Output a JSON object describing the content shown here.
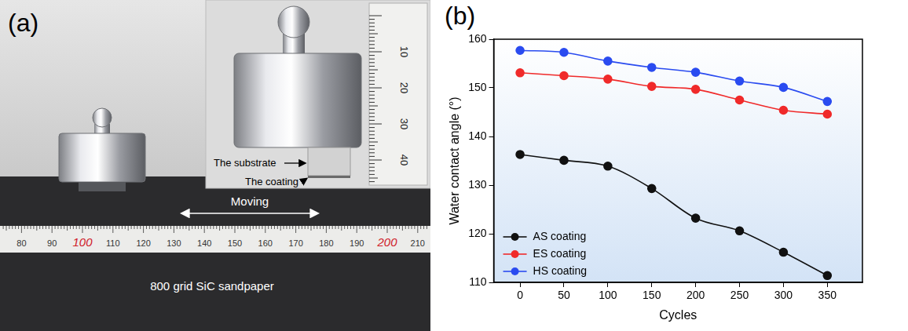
{
  "panel_a": {
    "label": "(a)",
    "annotations": {
      "substrate": "The substrate",
      "coating": "The coating",
      "moving": "Moving",
      "sandpaper": "800 grid SiC sandpaper"
    },
    "ruler_labels": [
      80,
      90,
      100,
      110,
      120,
      130,
      140,
      150,
      160,
      170,
      180,
      190,
      200,
      210
    ],
    "inset_ruler_labels": [
      10,
      20,
      30,
      40
    ]
  },
  "chart_data": {
    "type": "line",
    "panel_label": "(b)",
    "x_label": "Cycles",
    "y_label": "Water contact angle (°)",
    "x": [
      0,
      50,
      100,
      150,
      200,
      250,
      300,
      350
    ],
    "series": [
      {
        "name": "AS coating",
        "color": "#111111",
        "values": [
          136.3,
          135.1,
          133.9,
          129.3,
          123.2,
          120.6,
          116.2,
          111.4
        ]
      },
      {
        "name": "ES coating",
        "color": "#f02a2a",
        "values": [
          153.1,
          152.5,
          151.8,
          150.3,
          149.7,
          147.5,
          145.4,
          144.6
        ]
      },
      {
        "name": "HS coating",
        "color": "#2a4bf0",
        "values": [
          157.7,
          157.3,
          155.5,
          154.2,
          153.2,
          151.4,
          150.1,
          147.2
        ]
      }
    ],
    "xlim": [
      -30,
      390
    ],
    "xticks": [
      0,
      50,
      100,
      150,
      200,
      250,
      300,
      350
    ],
    "ylim": [
      110,
      160
    ],
    "yticks": [
      110,
      120,
      130,
      140,
      150,
      160
    ],
    "legend": "lower left",
    "marker": "circle",
    "grid": false
  }
}
